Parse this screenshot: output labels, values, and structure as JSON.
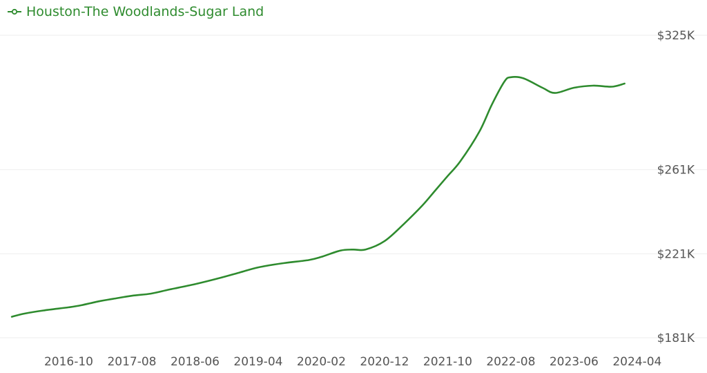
{
  "chart_data": {
    "type": "line",
    "title": "",
    "xlabel": "",
    "ylabel": "",
    "legend_position": "top-left",
    "grid": true,
    "series_color": "#2e8b2e",
    "grid_color": "#eeeeee",
    "series": [
      {
        "name": "Houston-The Woodlands-Sugar Land",
        "points": [
          [
            "2016-01",
            191
          ],
          [
            "2016-03",
            192.5
          ],
          [
            "2016-06",
            194
          ],
          [
            "2016-10",
            195.5
          ],
          [
            "2016-12",
            196.5
          ],
          [
            "2017-03",
            198.5
          ],
          [
            "2017-05",
            199.5
          ],
          [
            "2017-08",
            201
          ],
          [
            "2017-11",
            202
          ],
          [
            "2018-02",
            204
          ],
          [
            "2018-06",
            206.5
          ],
          [
            "2018-10",
            209.5
          ],
          [
            "2019-01",
            212
          ],
          [
            "2019-04",
            214.5
          ],
          [
            "2019-08",
            216.5
          ],
          [
            "2019-12",
            218
          ],
          [
            "2020-02",
            219.5
          ],
          [
            "2020-05",
            222.5
          ],
          [
            "2020-07",
            223
          ],
          [
            "2020-09",
            223
          ],
          [
            "2020-12",
            227
          ],
          [
            "2021-03",
            235
          ],
          [
            "2021-06",
            244
          ],
          [
            "2021-08",
            251
          ],
          [
            "2021-10",
            258
          ],
          [
            "2021-12",
            265
          ],
          [
            "2022-03",
            279
          ],
          [
            "2022-05",
            292
          ],
          [
            "2022-07",
            303
          ],
          [
            "2022-08",
            305
          ],
          [
            "2022-10",
            304.5
          ],
          [
            "2023-01",
            300
          ],
          [
            "2023-03",
            297.5
          ],
          [
            "2023-06",
            300
          ],
          [
            "2023-09",
            301
          ],
          [
            "2023-12",
            300.5
          ],
          [
            "2024-02",
            302
          ]
        ]
      }
    ],
    "x_range": [
      "2015-12",
      "2024-05"
    ],
    "x_ticks": [
      "2016-10",
      "2017-08",
      "2018-06",
      "2019-04",
      "2020-02",
      "2020-12",
      "2021-10",
      "2022-08",
      "2023-06",
      "2024-04"
    ],
    "y_ticks": [
      {
        "value": 181,
        "label": "$181K"
      },
      {
        "value": 221,
        "label": "$221K"
      },
      {
        "value": 261,
        "label": "$261K"
      },
      {
        "value": 325,
        "label": "$325K"
      }
    ]
  }
}
